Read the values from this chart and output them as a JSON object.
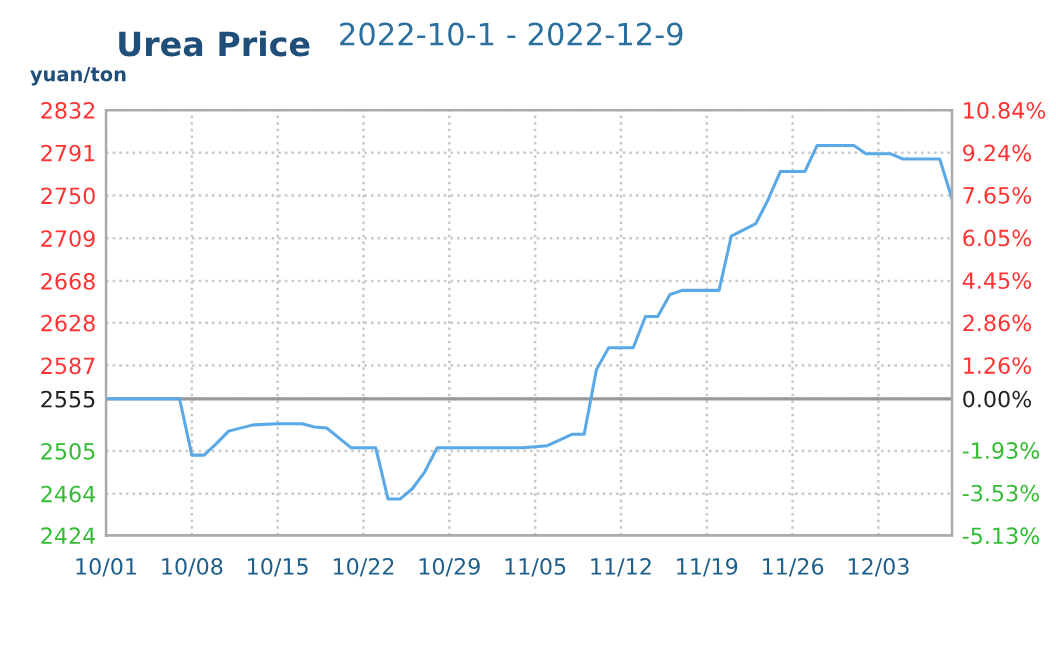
{
  "chart_data": {
    "type": "line",
    "title": "Urea Price",
    "subtitle": "2022-10-1 - 2022-12-9",
    "ylabel": "yuan/ton",
    "x": [
      "2022-10-01",
      "2022-10-07",
      "2022-10-08",
      "2022-10-09",
      "2022-10-10",
      "2022-10-11",
      "2022-10-13",
      "2022-10-15",
      "2022-10-17",
      "2022-10-18",
      "2022-10-19",
      "2022-10-21",
      "2022-10-23",
      "2022-10-24",
      "2022-10-25",
      "2022-10-26",
      "2022-10-27",
      "2022-10-28",
      "2022-11-04",
      "2022-11-06",
      "2022-11-08",
      "2022-11-09",
      "2022-11-10",
      "2022-11-11",
      "2022-11-13",
      "2022-11-14",
      "2022-11-15",
      "2022-11-16",
      "2022-11-17",
      "2022-11-20",
      "2022-11-21",
      "2022-11-23",
      "2022-11-24",
      "2022-11-25",
      "2022-11-27",
      "2022-11-28",
      "2022-12-01",
      "2022-12-02",
      "2022-12-04",
      "2022-12-05",
      "2022-12-08",
      "2022-12-09"
    ],
    "series": [
      {
        "color": "#5aa9e6",
        "values": [
          2555,
          2555,
          2501,
          2501,
          2512,
          2524,
          2530,
          2531,
          2531,
          2528,
          2527,
          2508,
          2508,
          2459,
          2459,
          2469,
          2485,
          2508,
          2508,
          2510,
          2521,
          2521,
          2583,
          2604,
          2604,
          2634,
          2634,
          2655,
          2659,
          2659,
          2711,
          2723,
          2746,
          2773,
          2773,
          2798,
          2798,
          2790,
          2790,
          2785,
          2785,
          2747
        ]
      }
    ],
    "xlim": [
      "2022-10-01",
      "2022-12-09"
    ],
    "xticks": [
      {
        "value": "2022-10-01",
        "label": "10/01"
      },
      {
        "value": "2022-10-08",
        "label": "10/08"
      },
      {
        "value": "2022-10-15",
        "label": "10/15"
      },
      {
        "value": "2022-10-22",
        "label": "10/22"
      },
      {
        "value": "2022-10-29",
        "label": "10/29"
      },
      {
        "value": "2022-11-05",
        "label": "11/05"
      },
      {
        "value": "2022-11-12",
        "label": "11/12"
      },
      {
        "value": "2022-11-19",
        "label": "11/19"
      },
      {
        "value": "2022-11-26",
        "label": "11/26"
      },
      {
        "value": "2022-12-03",
        "label": "12/03"
      }
    ],
    "ylim": [
      2424,
      2832
    ],
    "yticks": [
      2424,
      2464,
      2505,
      2555,
      2587,
      2628,
      2668,
      2709,
      2750,
      2791,
      2832
    ],
    "y2lim": [
      -5.13,
      10.84
    ],
    "y2ticks": [
      {
        "value": -5.13,
        "label": "-5.13%"
      },
      {
        "value": -3.53,
        "label": "-3.53%"
      },
      {
        "value": -1.93,
        "label": "-1.93%"
      },
      {
        "value": 0,
        "label": "0.00%"
      },
      {
        "value": 1.26,
        "label": "1.26%"
      },
      {
        "value": 2.86,
        "label": "2.86%"
      },
      {
        "value": 4.45,
        "label": "4.45%"
      },
      {
        "value": 6.05,
        "label": "6.05%"
      },
      {
        "value": 7.65,
        "label": "7.65%"
      },
      {
        "value": 9.24,
        "label": "9.24%"
      },
      {
        "value": 10.84,
        "label": "10.84%"
      }
    ],
    "ref_lines": [
      {
        "axis": "y",
        "value": 2555,
        "color": "#999999"
      }
    ],
    "grid": true,
    "marker": "none",
    "line_style": "solid"
  }
}
